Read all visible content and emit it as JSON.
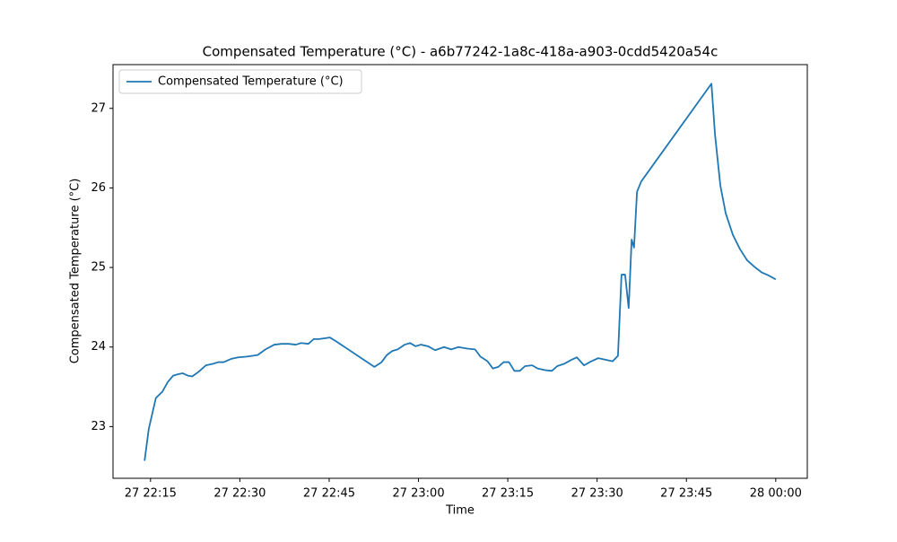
{
  "chart_data": {
    "type": "line",
    "title": "Compensated Temperature (°C) - a6b77242-1a8c-418a-a903-0cdd5420a54c",
    "x_label": "Time",
    "y_label": "Compensated Temperature (°C)",
    "legend": "upper left",
    "xlim": [
      "27 22:08:42",
      "28 00:05:18"
    ],
    "xticks": [
      "27 22:15",
      "27 22:30",
      "27 22:45",
      "27 23:00",
      "27 23:15",
      "27 23:30",
      "27 23:45",
      "28 00:00"
    ],
    "ylim": [
      22.35,
      27.55
    ],
    "yticks": [
      23,
      24,
      25,
      26,
      27
    ],
    "x": [
      "27 22:14:00",
      "27 22:14:42",
      "27 22:15:54",
      "27 22:17:00",
      "27 22:17:54",
      "27 22:18:48",
      "27 22:19:42",
      "27 22:20:24",
      "27 22:21:18",
      "27 22:22:00",
      "27 22:23:06",
      "27 22:24:18",
      "27 22:25:30",
      "27 22:26:24",
      "27 22:27:18",
      "27 22:28:30",
      "27 22:29:42",
      "27 22:31:12",
      "27 22:33:00",
      "27 22:34:18",
      "27 22:35:48",
      "27 22:37:00",
      "27 22:38:12",
      "27 22:39:24",
      "27 22:40:18",
      "27 22:41:30",
      "27 22:42:24",
      "27 22:43:18",
      "27 22:44:12",
      "27 22:45:06",
      "27 22:46:00",
      "27 22:52:36",
      "27 22:53:48",
      "27 22:54:42",
      "27 22:55:36",
      "27 22:56:30",
      "27 22:57:42",
      "27 22:58:36",
      "27 22:59:30",
      "27 23:00:24",
      "27 23:01:36",
      "27 23:02:48",
      "27 23:04:18",
      "27 23:05:30",
      "27 23:06:42",
      "27 23:08:12",
      "27 23:09:30",
      "27 23:10:24",
      "27 23:11:36",
      "27 23:12:30",
      "27 23:13:24",
      "27 23:14:18",
      "27 23:15:12",
      "27 23:16:06",
      "27 23:17:00",
      "27 23:17:54",
      "27 23:19:06",
      "27 23:20:00",
      "27 23:21:12",
      "27 23:22:24",
      "27 23:23:18",
      "27 23:24:30",
      "27 23:25:42",
      "27 23:26:36",
      "27 23:27:48",
      "27 23:29:00",
      "27 23:30:12",
      "27 23:31:24",
      "27 23:32:36",
      "27 23:33:30",
      "27 23:34:06",
      "27 23:34:42",
      "27 23:35:18",
      "27 23:35:48",
      "27 23:36:12",
      "27 23:36:42",
      "27 23:37:24",
      "27 23:49:12",
      "27 23:49:48",
      "27 23:50:42",
      "27 23:51:36",
      "27 23:52:48",
      "27 23:54:00",
      "27 23:55:12",
      "27 23:56:24",
      "27 23:57:36",
      "27 23:58:48",
      "28 00:00:00"
    ],
    "series": [
      {
        "name": "Compensated Temperature (°C)",
        "color": "#1f77b4",
        "values": [
          22.57,
          22.97,
          23.36,
          23.44,
          23.56,
          23.64,
          23.66,
          23.67,
          23.64,
          23.63,
          23.69,
          23.77,
          23.79,
          23.81,
          23.81,
          23.85,
          23.87,
          23.88,
          23.9,
          23.97,
          24.03,
          24.04,
          24.04,
          24.03,
          24.05,
          24.04,
          24.1,
          24.1,
          24.11,
          24.12,
          24.08,
          23.75,
          23.81,
          23.9,
          23.95,
          23.97,
          24.03,
          24.05,
          24.01,
          24.03,
          24.01,
          23.96,
          24.0,
          23.97,
          24.0,
          23.98,
          23.97,
          23.88,
          23.82,
          23.73,
          23.75,
          23.81,
          23.81,
          23.7,
          23.7,
          23.76,
          23.77,
          23.73,
          23.71,
          23.7,
          23.76,
          23.79,
          23.84,
          23.87,
          23.77,
          23.82,
          23.86,
          23.84,
          23.82,
          23.89,
          24.91,
          24.91,
          24.49,
          25.35,
          25.25,
          25.95,
          26.08,
          27.31,
          26.67,
          26.03,
          25.68,
          25.41,
          25.23,
          25.09,
          25.01,
          24.94,
          24.9,
          24.85
        ]
      }
    ]
  }
}
